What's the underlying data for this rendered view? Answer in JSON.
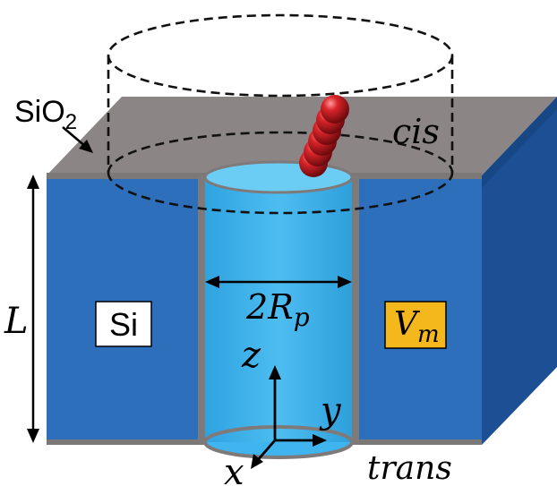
{
  "labels": {
    "sio2_main": "SiO",
    "sio2_sub": "2",
    "cis": "cis",
    "trans": "trans",
    "length": "L",
    "si": "Si",
    "diameter_prefix": "2R",
    "diameter_sub": "p",
    "vm_main": "V",
    "vm_sub": "m",
    "axis_z": "z",
    "axis_y": "y",
    "axis_x": "x"
  },
  "colors": {
    "oxide_top": "#8c8585",
    "silicon_front": "#2e6fbb",
    "silicon_side": "#1c4f94",
    "pore_water": "#3fb4ee",
    "pore_top": "#6ccdf4",
    "vm_box": "#f4b81c",
    "polymer_bead": "#c8141c"
  }
}
